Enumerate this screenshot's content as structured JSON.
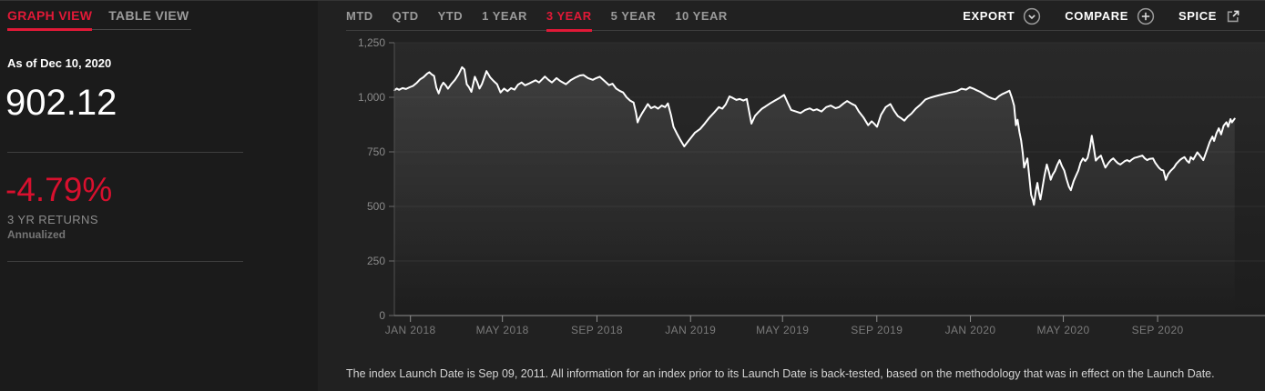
{
  "colors": {
    "accent_red": "#e11937",
    "negative_red": "#d8102e",
    "line": "#ffffff"
  },
  "left_panel": {
    "tabs": [
      {
        "label": "GRAPH VIEW",
        "active": true
      },
      {
        "label": "TABLE VIEW",
        "active": false
      }
    ],
    "as_of": "As of Dec 10, 2020",
    "value": "902.12",
    "returns_pct": "-4.79%",
    "returns_label": "3 YR RETURNS",
    "returns_sublabel": "Annualized"
  },
  "chart_header": {
    "ranges": [
      {
        "label": "MTD",
        "active": false
      },
      {
        "label": "QTD",
        "active": false
      },
      {
        "label": "YTD",
        "active": false
      },
      {
        "label": "1 YEAR",
        "active": false
      },
      {
        "label": "3 YEAR",
        "active": true
      },
      {
        "label": "5 YEAR",
        "active": false
      },
      {
        "label": "10 YEAR",
        "active": false
      }
    ],
    "actions": [
      {
        "label": "EXPORT",
        "icon": "chevron-down-circle-icon"
      },
      {
        "label": "COMPARE",
        "icon": "plus-circle-icon"
      },
      {
        "label": "SPICE",
        "icon": "external-link-icon"
      }
    ]
  },
  "disclaimer": "The index Launch Date is Sep 09, 2011. All information for an index prior to its Launch Date is back-tested, based on the methodology that was in effect on the Launch Date.",
  "chart_data": {
    "type": "line",
    "title": "",
    "xlabel": "",
    "ylabel": "",
    "grid": true,
    "legend": "none",
    "x_domain_months": [
      0,
      37.3
    ],
    "y_domain": [
      0,
      1250
    ],
    "y_ticks": [
      {
        "label": "0",
        "v": 0
      },
      {
        "label": "250",
        "v": 250
      },
      {
        "label": "500",
        "v": 500
      },
      {
        "label": "750",
        "v": 750
      },
      {
        "label": "1,000",
        "v": 1000
      },
      {
        "label": "1,250",
        "v": 1250
      }
    ],
    "x_ticks": [
      {
        "label": "JAN 2018",
        "m": 0.69
      },
      {
        "label": "MAY 2018",
        "m": 4.63
      },
      {
        "label": "SEP 2018",
        "m": 8.68
      },
      {
        "label": "JAN 2019",
        "m": 12.69
      },
      {
        "label": "MAY 2019",
        "m": 16.63
      },
      {
        "label": "SEP 2019",
        "m": 20.67
      },
      {
        "label": "JAN 2020",
        "m": 24.68
      },
      {
        "label": "MAY 2020",
        "m": 28.66
      },
      {
        "label": "SEP 2020",
        "m": 32.7
      }
    ],
    "points": [
      [
        0,
        1032
      ],
      [
        0.1,
        1040
      ],
      [
        0.2,
        1034
      ],
      [
        0.35,
        1042
      ],
      [
        0.5,
        1038
      ],
      [
        0.65,
        1046
      ],
      [
        0.8,
        1052
      ],
      [
        0.95,
        1065
      ],
      [
        1.1,
        1082
      ],
      [
        1.25,
        1092
      ],
      [
        1.4,
        1108
      ],
      [
        1.5,
        1115
      ],
      [
        1.6,
        1105
      ],
      [
        1.7,
        1098
      ],
      [
        1.8,
        1045
      ],
      [
        1.9,
        1018
      ],
      [
        2.0,
        1050
      ],
      [
        2.1,
        1067
      ],
      [
        2.2,
        1055
      ],
      [
        2.3,
        1039
      ],
      [
        2.45,
        1062
      ],
      [
        2.6,
        1080
      ],
      [
        2.75,
        1105
      ],
      [
        2.9,
        1138
      ],
      [
        3.0,
        1128
      ],
      [
        3.1,
        1060
      ],
      [
        3.2,
        1046
      ],
      [
        3.3,
        1025
      ],
      [
        3.45,
        1094
      ],
      [
        3.55,
        1070
      ],
      [
        3.65,
        1040
      ],
      [
        3.75,
        1060
      ],
      [
        3.85,
        1090
      ],
      [
        3.95,
        1120
      ],
      [
        4.1,
        1092
      ],
      [
        4.25,
        1075
      ],
      [
        4.4,
        1060
      ],
      [
        4.55,
        1022
      ],
      [
        4.7,
        1040
      ],
      [
        4.85,
        1028
      ],
      [
        5.0,
        1042
      ],
      [
        5.15,
        1035
      ],
      [
        5.3,
        1058
      ],
      [
        5.45,
        1068
      ],
      [
        5.6,
        1055
      ],
      [
        5.75,
        1062
      ],
      [
        5.9,
        1070
      ],
      [
        6.05,
        1078
      ],
      [
        6.2,
        1068
      ],
      [
        6.45,
        1095
      ],
      [
        6.6,
        1080
      ],
      [
        6.75,
        1068
      ],
      [
        6.95,
        1088
      ],
      [
        7.1,
        1075
      ],
      [
        7.35,
        1060
      ],
      [
        7.55,
        1078
      ],
      [
        7.75,
        1090
      ],
      [
        7.95,
        1100
      ],
      [
        8.1,
        1102
      ],
      [
        8.3,
        1088
      ],
      [
        8.5,
        1080
      ],
      [
        8.65,
        1088
      ],
      [
        8.8,
        1094
      ],
      [
        9.0,
        1075
      ],
      [
        9.2,
        1056
      ],
      [
        9.35,
        1062
      ],
      [
        9.5,
        1040
      ],
      [
        9.65,
        1030
      ],
      [
        9.8,
        1022
      ],
      [
        9.95,
        1000
      ],
      [
        10.1,
        985
      ],
      [
        10.25,
        976
      ],
      [
        10.35,
        930
      ],
      [
        10.42,
        885
      ],
      [
        10.5,
        905
      ],
      [
        10.62,
        928
      ],
      [
        10.75,
        950
      ],
      [
        10.86,
        969
      ],
      [
        11.0,
        950
      ],
      [
        11.15,
        958
      ],
      [
        11.3,
        948
      ],
      [
        11.45,
        962
      ],
      [
        11.6,
        955
      ],
      [
        11.72,
        972
      ],
      [
        11.85,
        920
      ],
      [
        11.96,
        865
      ],
      [
        12.1,
        835
      ],
      [
        12.25,
        805
      ],
      [
        12.42,
        775
      ],
      [
        12.6,
        800
      ],
      [
        12.87,
        837
      ],
      [
        13.1,
        855
      ],
      [
        13.3,
        880
      ],
      [
        13.5,
        907
      ],
      [
        13.7,
        930
      ],
      [
        13.9,
        955
      ],
      [
        14.05,
        948
      ],
      [
        14.2,
        968
      ],
      [
        14.36,
        1004
      ],
      [
        14.5,
        997
      ],
      [
        14.65,
        988
      ],
      [
        14.8,
        992
      ],
      [
        14.95,
        985
      ],
      [
        15.1,
        992
      ],
      [
        15.3,
        879
      ],
      [
        15.45,
        915
      ],
      [
        15.6,
        932
      ],
      [
        15.75,
        948
      ],
      [
        15.9,
        958
      ],
      [
        16.1,
        972
      ],
      [
        16.3,
        985
      ],
      [
        16.5,
        997
      ],
      [
        16.7,
        1011
      ],
      [
        16.85,
        975
      ],
      [
        17.0,
        942
      ],
      [
        17.2,
        935
      ],
      [
        17.4,
        928
      ],
      [
        17.6,
        942
      ],
      [
        17.8,
        949
      ],
      [
        17.95,
        940
      ],
      [
        18.1,
        945
      ],
      [
        18.3,
        935
      ],
      [
        18.5,
        955
      ],
      [
        18.7,
        962
      ],
      [
        18.9,
        950
      ],
      [
        19.05,
        955
      ],
      [
        19.25,
        972
      ],
      [
        19.4,
        983
      ],
      [
        19.6,
        970
      ],
      [
        19.75,
        962
      ],
      [
        19.9,
        935
      ],
      [
        20.1,
        907
      ],
      [
        20.3,
        872
      ],
      [
        20.45,
        890
      ],
      [
        20.55,
        880
      ],
      [
        20.68,
        865
      ],
      [
        20.85,
        920
      ],
      [
        21.05,
        955
      ],
      [
        21.25,
        969
      ],
      [
        21.4,
        940
      ],
      [
        21.57,
        914
      ],
      [
        21.7,
        905
      ],
      [
        21.85,
        893
      ],
      [
        22.0,
        912
      ],
      [
        22.15,
        925
      ],
      [
        22.35,
        949
      ],
      [
        22.55,
        968
      ],
      [
        22.75,
        990
      ],
      [
        22.95,
        998
      ],
      [
        23.15,
        1004
      ],
      [
        23.35,
        1010
      ],
      [
        23.55,
        1015
      ],
      [
        23.75,
        1020
      ],
      [
        23.95,
        1024
      ],
      [
        24.1,
        1028
      ],
      [
        24.3,
        1039
      ],
      [
        24.5,
        1035
      ],
      [
        24.65,
        1046
      ],
      [
        24.8,
        1040
      ],
      [
        24.95,
        1032
      ],
      [
        25.1,
        1025
      ],
      [
        25.25,
        1015
      ],
      [
        25.45,
        1002
      ],
      [
        25.6,
        995
      ],
      [
        25.75,
        990
      ],
      [
        25.9,
        1005
      ],
      [
        26.05,
        1015
      ],
      [
        26.2,
        1022
      ],
      [
        26.35,
        1030
      ],
      [
        26.45,
        1000
      ],
      [
        26.55,
        962
      ],
      [
        26.63,
        872
      ],
      [
        26.7,
        897
      ],
      [
        26.78,
        840
      ],
      [
        26.85,
        803
      ],
      [
        26.92,
        745
      ],
      [
        26.98,
        678
      ],
      [
        27.05,
        700
      ],
      [
        27.12,
        720
      ],
      [
        27.2,
        640
      ],
      [
        27.28,
        553
      ],
      [
        27.35,
        530
      ],
      [
        27.4,
        507
      ],
      [
        27.48,
        570
      ],
      [
        27.55,
        608
      ],
      [
        27.62,
        560
      ],
      [
        27.68,
        532
      ],
      [
        27.75,
        575
      ],
      [
        27.85,
        640
      ],
      [
        27.95,
        692
      ],
      [
        28.05,
        655
      ],
      [
        28.12,
        622
      ],
      [
        28.2,
        645
      ],
      [
        28.3,
        662
      ],
      [
        28.4,
        690
      ],
      [
        28.5,
        712
      ],
      [
        28.6,
        685
      ],
      [
        28.7,
        664
      ],
      [
        28.8,
        625
      ],
      [
        28.9,
        590
      ],
      [
        28.98,
        574
      ],
      [
        29.1,
        615
      ],
      [
        29.2,
        640
      ],
      [
        29.3,
        664
      ],
      [
        29.4,
        700
      ],
      [
        29.5,
        720
      ],
      [
        29.6,
        708
      ],
      [
        29.7,
        722
      ],
      [
        29.8,
        770
      ],
      [
        29.88,
        824
      ],
      [
        29.95,
        780
      ],
      [
        30.05,
        710
      ],
      [
        30.15,
        722
      ],
      [
        30.27,
        733
      ],
      [
        30.38,
        700
      ],
      [
        30.46,
        678
      ],
      [
        30.6,
        700
      ],
      [
        30.7,
        712
      ],
      [
        30.8,
        720
      ],
      [
        30.9,
        708
      ],
      [
        31.0,
        698
      ],
      [
        31.1,
        692
      ],
      [
        31.2,
        700
      ],
      [
        31.3,
        708
      ],
      [
        31.4,
        712
      ],
      [
        31.5,
        706
      ],
      [
        31.6,
        715
      ],
      [
        31.7,
        722
      ],
      [
        31.83,
        726
      ],
      [
        31.95,
        730
      ],
      [
        32.05,
        733
      ],
      [
        32.15,
        720
      ],
      [
        32.25,
        712
      ],
      [
        32.35,
        718
      ],
      [
        32.5,
        720
      ],
      [
        32.6,
        700
      ],
      [
        32.75,
        678
      ],
      [
        32.85,
        668
      ],
      [
        32.95,
        664
      ],
      [
        33.05,
        622
      ],
      [
        33.15,
        648
      ],
      [
        33.25,
        662
      ],
      [
        33.4,
        678
      ],
      [
        33.5,
        695
      ],
      [
        33.65,
        712
      ],
      [
        33.75,
        720
      ],
      [
        33.85,
        726
      ],
      [
        33.95,
        710
      ],
      [
        34.05,
        700
      ],
      [
        34.12,
        726
      ],
      [
        34.23,
        715
      ],
      [
        34.4,
        748
      ],
      [
        34.5,
        735
      ],
      [
        34.66,
        712
      ],
      [
        34.82,
        760
      ],
      [
        34.93,
        795
      ],
      [
        35.05,
        820
      ],
      [
        35.12,
        800
      ],
      [
        35.22,
        835
      ],
      [
        35.32,
        858
      ],
      [
        35.42,
        830
      ],
      [
        35.53,
        870
      ],
      [
        35.65,
        886
      ],
      [
        35.72,
        865
      ],
      [
        35.82,
        900
      ],
      [
        35.88,
        885
      ],
      [
        36.0,
        902.12
      ]
    ]
  }
}
